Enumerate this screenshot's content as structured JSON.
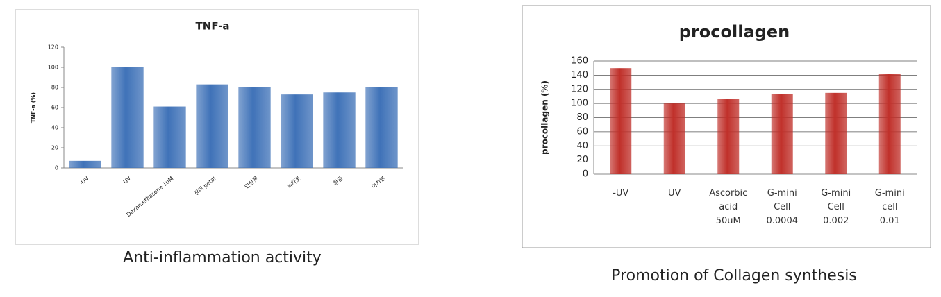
{
  "chart_data": [
    {
      "type": "bar",
      "title": "TNF-a",
      "y_label": "TNF-a (%)",
      "caption": "Anti-inflammation activity",
      "categories": [
        "-UV",
        "UV",
        "Dexamethasone 1uM",
        "장미 petal",
        "인삼꽃",
        "녹차꽃",
        "황금",
        "아치연"
      ],
      "values": [
        7,
        100,
        61,
        83,
        80,
        73,
        75,
        80
      ],
      "color": "#3f72b8",
      "ylim": [
        0,
        120
      ],
      "yticks": [
        0,
        20,
        40,
        60,
        80,
        100,
        120
      ],
      "grid": false
    },
    {
      "type": "bar",
      "title": "procollagen",
      "y_label": "procollagen (%)",
      "caption": "Promotion of Collagen synthesis",
      "categories": [
        "-UV",
        "UV",
        "Ascorbic acid 50uM",
        "G-mini Cell 0.0004",
        "G-mini Cell 0.002",
        "G-mini cell 0.01"
      ],
      "values": [
        150,
        100,
        106,
        113,
        115,
        142
      ],
      "color": "#c0302a",
      "ylim": [
        0,
        160
      ],
      "yticks": [
        0,
        20,
        40,
        60,
        80,
        100,
        120,
        140,
        160
      ],
      "grid": true
    }
  ]
}
